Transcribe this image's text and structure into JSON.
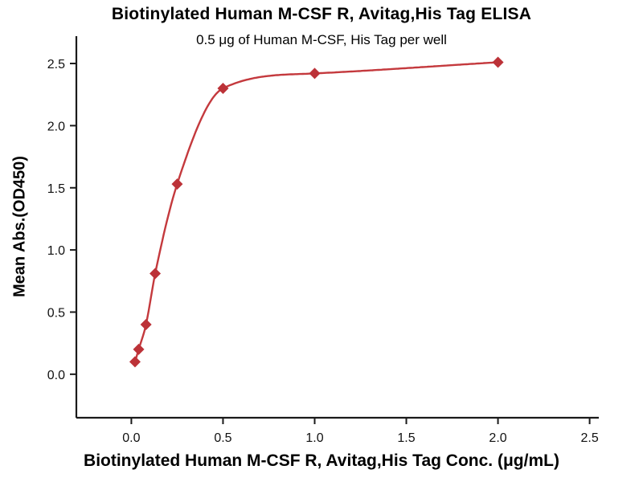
{
  "chart_data": {
    "type": "scatter",
    "title": "Biotinylated Human M-CSF R, Avitag,His Tag ELISA",
    "subtitle": "0.5 μg of Human M-CSF, His Tag per well",
    "xlabel": "Biotinylated Human M-CSF R, Avitag,His Tag Conc. (μg/mL)",
    "ylabel": "Mean Abs.(OD450)",
    "x": [
      0.02,
      0.04,
      0.08,
      0.13,
      0.25,
      0.5,
      1.0,
      2.0
    ],
    "y": [
      0.1,
      0.2,
      0.4,
      0.81,
      1.53,
      2.3,
      2.42,
      2.51
    ],
    "x_ticks": [
      0.0,
      0.5,
      1.0,
      1.5,
      2.0,
      2.5
    ],
    "y_ticks": [
      0.0,
      0.5,
      1.0,
      1.5,
      2.0,
      2.5
    ],
    "xlim": [
      -0.3,
      2.55
    ],
    "ylim": [
      -0.35,
      2.72
    ],
    "grid": false,
    "legend": null,
    "line_color": "#c4393d",
    "marker": "diamond",
    "marker_color": "#bc3238",
    "axis_color": "#1a1a1a"
  }
}
